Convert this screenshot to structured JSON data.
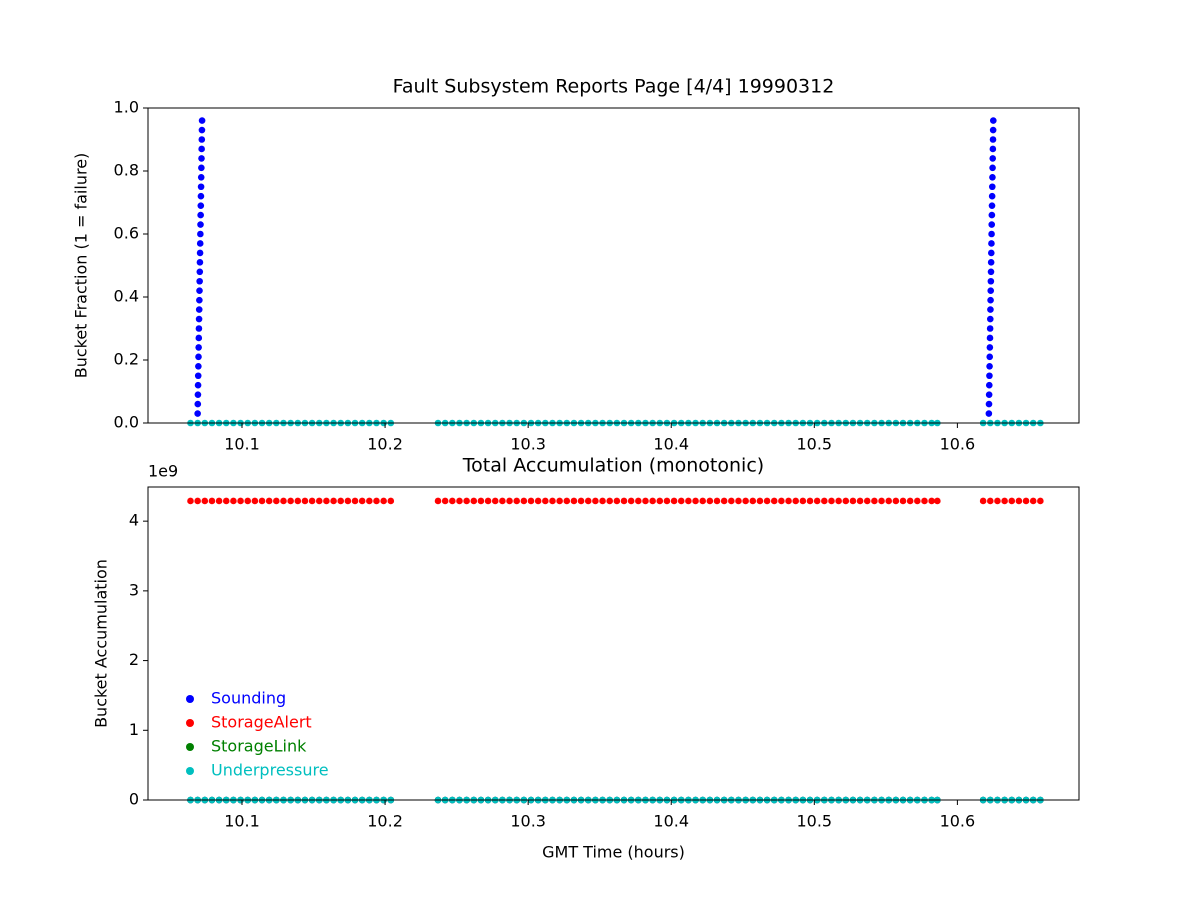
{
  "chart_data": [
    {
      "type": "scatter",
      "title": "Fault Subsystem Reports Page [4/4] 19990312",
      "y_label": "Bucket Fraction (1 = failure)",
      "xlim": [
        10.0343,
        10.685
      ],
      "ylim": [
        0,
        1
      ],
      "xticks": [
        10.1,
        10.2,
        10.3,
        10.4,
        10.5,
        10.6
      ],
      "yticks": [
        {
          "value": 0,
          "label": "0.0"
        },
        {
          "value": 0.2,
          "label": "0.2"
        },
        {
          "value": 0.4,
          "label": "0.4"
        },
        {
          "value": 0.6,
          "label": "0.6"
        },
        {
          "value": 0.8,
          "label": "0.8"
        },
        {
          "value": 1,
          "label": "1.0"
        }
      ],
      "x": [
        10.064,
        10.069,
        10.074,
        10.079,
        10.084,
        10.089,
        10.094,
        10.099,
        10.104,
        10.109,
        10.114,
        10.119,
        10.124,
        10.129,
        10.134,
        10.139,
        10.144,
        10.149,
        10.154,
        10.159,
        10.164,
        10.169,
        10.174,
        10.179,
        10.184,
        10.189,
        10.194,
        10.199,
        10.204,
        10.237,
        10.242,
        10.247,
        10.252,
        10.257,
        10.262,
        10.267,
        10.272,
        10.277,
        10.282,
        10.287,
        10.292,
        10.297,
        10.302,
        10.307,
        10.312,
        10.317,
        10.322,
        10.327,
        10.332,
        10.337,
        10.342,
        10.347,
        10.352,
        10.357,
        10.362,
        10.367,
        10.372,
        10.377,
        10.382,
        10.387,
        10.392,
        10.397,
        10.402,
        10.407,
        10.412,
        10.417,
        10.422,
        10.427,
        10.432,
        10.437,
        10.442,
        10.447,
        10.452,
        10.457,
        10.462,
        10.467,
        10.472,
        10.477,
        10.482,
        10.487,
        10.492,
        10.497,
        10.502,
        10.507,
        10.512,
        10.517,
        10.522,
        10.527,
        10.532,
        10.537,
        10.542,
        10.547,
        10.552,
        10.557,
        10.562,
        10.567,
        10.572,
        10.577,
        10.582,
        10.586,
        10.618,
        10.623,
        10.628,
        10.633,
        10.638,
        10.643,
        10.648,
        10.653,
        10.658
      ],
      "series": [
        {
          "color": "#0000ff",
          "x": [
            10.069,
            10.0691,
            10.0692,
            10.0693,
            10.0694,
            10.0695,
            10.0696,
            10.0697,
            10.0698,
            10.0699,
            10.07,
            10.0701,
            10.0702,
            10.0703,
            10.0704,
            10.0705,
            10.0706,
            10.0707,
            10.0708,
            10.0709,
            10.071,
            10.0711,
            10.0712,
            10.0713,
            10.0714,
            10.0715,
            10.0716,
            10.0717,
            10.0718,
            10.0719,
            10.072,
            10.0721,
            10.622,
            10.6221,
            10.6222,
            10.6223,
            10.6224,
            10.6225,
            10.6226,
            10.6227,
            10.6228,
            10.6229,
            10.623,
            10.6231,
            10.6232,
            10.6233,
            10.6234,
            10.6235,
            10.6236,
            10.6237,
            10.6238,
            10.6239,
            10.624,
            10.6241,
            10.6242,
            10.6243,
            10.6244,
            10.6245,
            10.6246,
            10.6247,
            10.6248,
            10.6249,
            10.625,
            10.6251
          ],
          "values": [
            0.03,
            0.06,
            0.09,
            0.12,
            0.15,
            0.18,
            0.21,
            0.24,
            0.27,
            0.3,
            0.33,
            0.36,
            0.39,
            0.42,
            0.45,
            0.48,
            0.51,
            0.54,
            0.57,
            0.6,
            0.63,
            0.66,
            0.69,
            0.72,
            0.75,
            0.78,
            0.81,
            0.84,
            0.87,
            0.9,
            0.93,
            0.96,
            0.03,
            0.06,
            0.09,
            0.12,
            0.15,
            0.18,
            0.21,
            0.24,
            0.27,
            0.3,
            0.33,
            0.36,
            0.39,
            0.42,
            0.45,
            0.48,
            0.51,
            0.54,
            0.57,
            0.6,
            0.63,
            0.66,
            0.69,
            0.72,
            0.75,
            0.78,
            0.81,
            0.84,
            0.87,
            0.9,
            0.93,
            0.96
          ]
        },
        {
          "color": "#00bfbf",
          "values": [
            0,
            0,
            0,
            0,
            0,
            0,
            0,
            0,
            0,
            0,
            0,
            0,
            0,
            0,
            0,
            0,
            0,
            0,
            0,
            0,
            0,
            0,
            0,
            0,
            0,
            0,
            0,
            0,
            0,
            0,
            0,
            0,
            0,
            0,
            0,
            0,
            0,
            0,
            0,
            0,
            0,
            0,
            0,
            0,
            0,
            0,
            0,
            0,
            0,
            0,
            0,
            0,
            0,
            0,
            0,
            0,
            0,
            0,
            0,
            0,
            0,
            0,
            0,
            0,
            0,
            0,
            0,
            0,
            0,
            0,
            0,
            0,
            0,
            0,
            0,
            0,
            0,
            0,
            0,
            0,
            0,
            0,
            0,
            0,
            0,
            0,
            0,
            0,
            0,
            0,
            0,
            0,
            0,
            0,
            0,
            0,
            0,
            0,
            0,
            0,
            0,
            0,
            0,
            0,
            0,
            0,
            0,
            0,
            0
          ]
        }
      ]
    },
    {
      "type": "scatter",
      "title": "Total Accumulation (monotonic)",
      "x_label": "GMT Time (hours)",
      "y_label": "Bucket Accumulation",
      "y_offset_label": "1e9",
      "xlim": [
        10.0343,
        10.685
      ],
      "ylim": [
        0,
        4490000000
      ],
      "xticks": [
        10.1,
        10.2,
        10.3,
        10.4,
        10.5,
        10.6
      ],
      "yticks": [
        0,
        {
          "value": 1000000000,
          "label": "1"
        },
        {
          "value": 2000000000,
          "label": "2"
        },
        {
          "value": 3000000000,
          "label": "3"
        },
        {
          "value": 4000000000,
          "label": "4"
        }
      ],
      "legend": "lower left",
      "x": [
        10.064,
        10.069,
        10.074,
        10.079,
        10.084,
        10.089,
        10.094,
        10.099,
        10.104,
        10.109,
        10.114,
        10.119,
        10.124,
        10.129,
        10.134,
        10.139,
        10.144,
        10.149,
        10.154,
        10.159,
        10.164,
        10.169,
        10.174,
        10.179,
        10.184,
        10.189,
        10.194,
        10.199,
        10.204,
        10.237,
        10.242,
        10.247,
        10.252,
        10.257,
        10.262,
        10.267,
        10.272,
        10.277,
        10.282,
        10.287,
        10.292,
        10.297,
        10.302,
        10.307,
        10.312,
        10.317,
        10.322,
        10.327,
        10.332,
        10.337,
        10.342,
        10.347,
        10.352,
        10.357,
        10.362,
        10.367,
        10.372,
        10.377,
        10.382,
        10.387,
        10.392,
        10.397,
        10.402,
        10.407,
        10.412,
        10.417,
        10.422,
        10.427,
        10.432,
        10.437,
        10.442,
        10.447,
        10.452,
        10.457,
        10.462,
        10.467,
        10.472,
        10.477,
        10.482,
        10.487,
        10.492,
        10.497,
        10.502,
        10.507,
        10.512,
        10.517,
        10.522,
        10.527,
        10.532,
        10.537,
        10.542,
        10.547,
        10.552,
        10.557,
        10.562,
        10.567,
        10.572,
        10.577,
        10.582,
        10.586,
        10.618,
        10.623,
        10.628,
        10.633,
        10.638,
        10.643,
        10.648,
        10.653,
        10.658
      ],
      "series": [
        {
          "name": "Sounding",
          "color": "#0000ff",
          "values": [
            0,
            0,
            0,
            0,
            0,
            0,
            0,
            0,
            0,
            0,
            0,
            0,
            0,
            0,
            0,
            0,
            0,
            0,
            0,
            0,
            0,
            0,
            0,
            0,
            0,
            0,
            0,
            0,
            0,
            0,
            0,
            0,
            0,
            0,
            0,
            0,
            0,
            0,
            0,
            0,
            0,
            0,
            0,
            0,
            0,
            0,
            0,
            0,
            0,
            0,
            0,
            0,
            0,
            0,
            0,
            0,
            0,
            0,
            0,
            0,
            0,
            0,
            0,
            0,
            0,
            0,
            0,
            0,
            0,
            0,
            0,
            0,
            0,
            0,
            0,
            0,
            0,
            0,
            0,
            0,
            0,
            0,
            0,
            0,
            0,
            0,
            0,
            0,
            0,
            0,
            0,
            0,
            0,
            0,
            0,
            0,
            0,
            0,
            0,
            0,
            0,
            0,
            0,
            0,
            0,
            0,
            0,
            0,
            0
          ]
        },
        {
          "name": "StorageAlert",
          "color": "#ff0000",
          "values": [
            4290000000,
            4290000000,
            4290000000,
            4290000000,
            4290000000,
            4290000000,
            4290000000,
            4290000000,
            4290000000,
            4290000000,
            4290000000,
            4290000000,
            4290000000,
            4290000000,
            4290000000,
            4290000000,
            4290000000,
            4290000000,
            4290000000,
            4290000000,
            4290000000,
            4290000000,
            4290000000,
            4290000000,
            4290000000,
            4290000000,
            4290000000,
            4290000000,
            4290000000,
            4290000000,
            4290000000,
            4290000000,
            4290000000,
            4290000000,
            4290000000,
            4290000000,
            4290000000,
            4290000000,
            4290000000,
            4290000000,
            4290000000,
            4290000000,
            4290000000,
            4290000000,
            4290000000,
            4290000000,
            4290000000,
            4290000000,
            4290000000,
            4290000000,
            4290000000,
            4290000000,
            4290000000,
            4290000000,
            4290000000,
            4290000000,
            4290000000,
            4290000000,
            4290000000,
            4290000000,
            4290000000,
            4290000000,
            4290000000,
            4290000000,
            4290000000,
            4290000000,
            4290000000,
            4290000000,
            4290000000,
            4290000000,
            4290000000,
            4290000000,
            4290000000,
            4290000000,
            4290000000,
            4290000000,
            4290000000,
            4290000000,
            4290000000,
            4290000000,
            4290000000,
            4290000000,
            4290000000,
            4290000000,
            4290000000,
            4290000000,
            4290000000,
            4290000000,
            4290000000,
            4290000000,
            4290000000,
            4290000000,
            4290000000,
            4290000000,
            4290000000,
            4290000000,
            4290000000,
            4290000000,
            4290000000,
            4290000000,
            4290000000,
            4290000000,
            4290000000,
            4290000000,
            4290000000,
            4290000000,
            4290000000,
            4290000000,
            4290000000
          ]
        },
        {
          "name": "StorageLink",
          "color": "#008000",
          "values": [
            0,
            0,
            0,
            0,
            0,
            0,
            0,
            0,
            0,
            0,
            0,
            0,
            0,
            0,
            0,
            0,
            0,
            0,
            0,
            0,
            0,
            0,
            0,
            0,
            0,
            0,
            0,
            0,
            0,
            0,
            0,
            0,
            0,
            0,
            0,
            0,
            0,
            0,
            0,
            0,
            0,
            0,
            0,
            0,
            0,
            0,
            0,
            0,
            0,
            0,
            0,
            0,
            0,
            0,
            0,
            0,
            0,
            0,
            0,
            0,
            0,
            0,
            0,
            0,
            0,
            0,
            0,
            0,
            0,
            0,
            0,
            0,
            0,
            0,
            0,
            0,
            0,
            0,
            0,
            0,
            0,
            0,
            0,
            0,
            0,
            0,
            0,
            0,
            0,
            0,
            0,
            0,
            0,
            0,
            0,
            0,
            0,
            0,
            0,
            0,
            0,
            0,
            0,
            0,
            0,
            0,
            0,
            0,
            0
          ]
        },
        {
          "name": "Underpressure",
          "color": "#00bfbf",
          "values": [
            0,
            0,
            0,
            0,
            0,
            0,
            0,
            0,
            0,
            0,
            0,
            0,
            0,
            0,
            0,
            0,
            0,
            0,
            0,
            0,
            0,
            0,
            0,
            0,
            0,
            0,
            0,
            0,
            0,
            0,
            0,
            0,
            0,
            0,
            0,
            0,
            0,
            0,
            0,
            0,
            0,
            0,
            0,
            0,
            0,
            0,
            0,
            0,
            0,
            0,
            0,
            0,
            0,
            0,
            0,
            0,
            0,
            0,
            0,
            0,
            0,
            0,
            0,
            0,
            0,
            0,
            0,
            0,
            0,
            0,
            0,
            0,
            0,
            0,
            0,
            0,
            0,
            0,
            0,
            0,
            0,
            0,
            0,
            0,
            0,
            0,
            0,
            0,
            0,
            0,
            0,
            0,
            0,
            0,
            0,
            0,
            0,
            0,
            0,
            0,
            0,
            0,
            0,
            0,
            0,
            0,
            0,
            0,
            0
          ]
        }
      ]
    }
  ]
}
